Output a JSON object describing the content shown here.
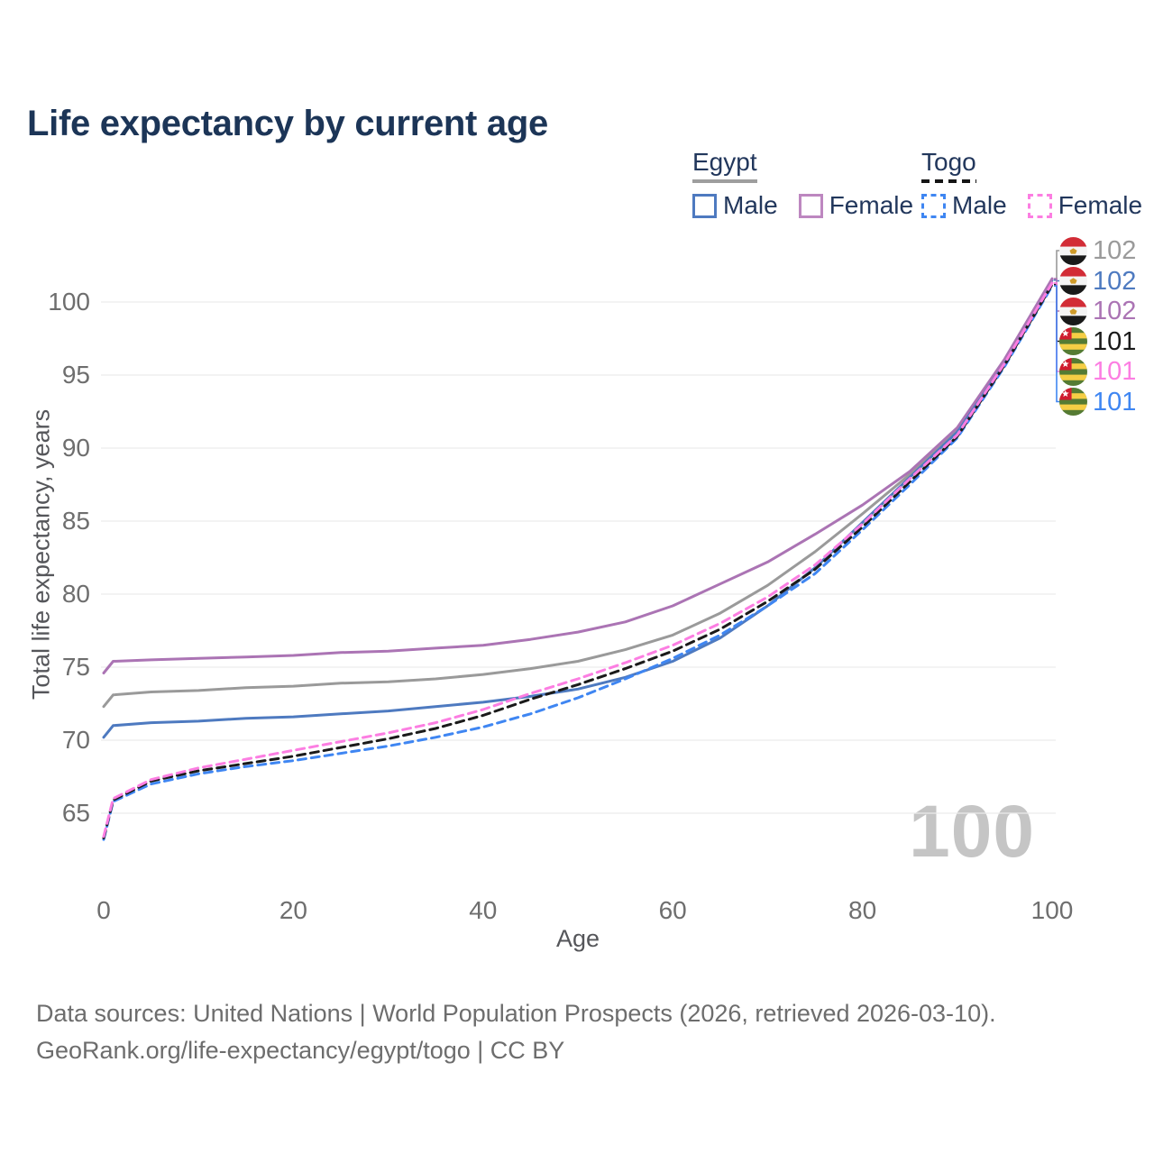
{
  "title": "Life expectancy by current age",
  "legend": {
    "groups": [
      {
        "label": "Egypt",
        "underline_style": "solid",
        "underline_color": "#9e9e9e",
        "items": [
          {
            "label": "Male",
            "color": "#4e7ac0",
            "dashed": false
          },
          {
            "label": "Female",
            "color": "#bd87c0",
            "dashed": false
          }
        ]
      },
      {
        "label": "Togo",
        "underline_style": "dashed",
        "underline_color": "#151515",
        "items": [
          {
            "label": "Male",
            "color": "#3f86f2",
            "dashed": true
          },
          {
            "label": "Female",
            "color": "#fc7ee2",
            "dashed": true
          }
        ]
      }
    ]
  },
  "chart_data": {
    "type": "line",
    "title": "Life expectancy by current age",
    "xlabel": "Age",
    "ylabel": "Total life expectancy, years",
    "watermark": "100",
    "grid": true,
    "xlim": [
      0,
      100
    ],
    "ylim": [
      63,
      102.5
    ],
    "xticks": [
      0,
      20,
      40,
      60,
      80,
      100
    ],
    "yticks": [
      65,
      70,
      75,
      80,
      85,
      90,
      95,
      100
    ],
    "x": [
      0,
      1,
      5,
      10,
      15,
      20,
      25,
      30,
      35,
      40,
      45,
      50,
      55,
      60,
      65,
      70,
      75,
      80,
      85,
      90,
      95,
      100
    ],
    "series": [
      {
        "id": "egypt-both",
        "name": "Egypt - Both sexes",
        "flag": "egypt",
        "style": "solid",
        "color": "#9a9a9a",
        "end_label": "102",
        "values": [
          72.3,
          73.1,
          73.3,
          73.4,
          73.6,
          73.7,
          73.9,
          74.0,
          74.2,
          74.5,
          74.9,
          75.4,
          76.2,
          77.2,
          78.7,
          80.6,
          82.9,
          85.5,
          88.2,
          91.2,
          96.0,
          101.55
        ]
      },
      {
        "id": "egypt-male",
        "name": "Egypt - Male",
        "flag": "egypt",
        "style": "solid",
        "color": "#4e7ac0",
        "end_label": "102",
        "values": [
          70.2,
          71.0,
          71.2,
          71.3,
          71.5,
          71.6,
          71.8,
          72.0,
          72.3,
          72.6,
          73.0,
          73.5,
          74.3,
          75.4,
          77.0,
          79.2,
          81.8,
          84.9,
          88.0,
          91.1,
          95.9,
          101.5
        ]
      },
      {
        "id": "egypt-female",
        "name": "Egypt - Female",
        "flag": "egypt",
        "style": "solid",
        "color": "#ab74b4",
        "end_label": "102",
        "values": [
          74.6,
          75.4,
          75.5,
          75.6,
          75.7,
          75.8,
          76.0,
          76.1,
          76.3,
          76.5,
          76.9,
          77.4,
          78.1,
          79.2,
          80.7,
          82.2,
          84.1,
          86.1,
          88.4,
          91.4,
          96.1,
          101.6
        ]
      },
      {
        "id": "togo-both",
        "name": "Togo - Both sexes",
        "flag": "togo",
        "style": "dashed",
        "color": "#1a1a1a",
        "end_label": "101",
        "values": [
          63.3,
          65.9,
          67.2,
          67.9,
          68.4,
          68.9,
          69.5,
          70.1,
          70.8,
          71.7,
          72.8,
          73.8,
          74.9,
          76.1,
          77.6,
          79.5,
          81.7,
          84.6,
          87.7,
          90.8,
          95.7,
          101.2
        ]
      },
      {
        "id": "togo-female",
        "name": "Togo - Female",
        "flag": "togo",
        "style": "dashed",
        "color": "#fc7ee2",
        "end_label": "101",
        "values": [
          63.4,
          66.0,
          67.3,
          68.1,
          68.7,
          69.3,
          69.9,
          70.5,
          71.2,
          72.1,
          73.2,
          74.2,
          75.3,
          76.5,
          78.0,
          79.8,
          82.0,
          84.8,
          87.9,
          90.9,
          95.8,
          101.3
        ]
      },
      {
        "id": "togo-male",
        "name": "Togo - Male",
        "flag": "togo",
        "style": "dashed",
        "color": "#3f86f2",
        "end_label": "101",
        "values": [
          63.2,
          65.8,
          67.0,
          67.7,
          68.2,
          68.6,
          69.1,
          69.6,
          70.2,
          70.9,
          71.8,
          72.9,
          74.2,
          75.6,
          77.2,
          79.2,
          81.4,
          84.4,
          87.5,
          90.7,
          95.6,
          101.1
        ]
      }
    ],
    "legend_position": "top-right"
  },
  "colors": {
    "title_text": "#1c3557",
    "legend_text": "#22375c",
    "tick_text": "#6e6e6e",
    "axis_label_text": "#55565a",
    "gridline": "#ececec",
    "watermark": "#c5c5c5",
    "footer_text": "#6d6d6d"
  },
  "footer": {
    "line1": "Data sources: United Nations | World Population Prospects (2026, retrieved 2026-03-10).",
    "line2": "GeoRank.org/life-expectancy/egypt/togo | CC BY"
  }
}
